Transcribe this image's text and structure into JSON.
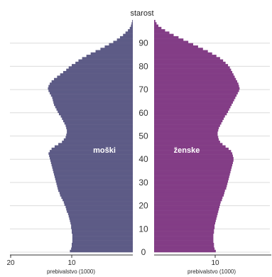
{
  "chart_data": {
    "type": "bar",
    "orientation": "horizontal-pyramid",
    "age_axis_title": "starost",
    "age_ticks": [
      0,
      10,
      20,
      30,
      40,
      50,
      60,
      70,
      80,
      90
    ],
    "age_range": [
      0,
      100
    ],
    "x_ticks": [
      20,
      10
    ],
    "x_range": [
      0,
      20
    ],
    "xlabel_left": "prebivalstvo (1000)",
    "xlabel_right": "prebivalstvo (1000)",
    "grid": true,
    "colors": {
      "male": "#5d5b86",
      "female": "#833d86"
    },
    "series": [
      {
        "name": "moški",
        "side": "left",
        "values": [
          10.3,
          10.1,
          10.0,
          10.0,
          9.9,
          9.9,
          9.9,
          9.9,
          10.0,
          10.0,
          10.1,
          10.1,
          10.2,
          10.3,
          10.4,
          10.5,
          10.6,
          10.8,
          10.9,
          11.0,
          11.2,
          11.3,
          11.5,
          11.7,
          11.9,
          12.0,
          12.2,
          12.3,
          12.4,
          12.5,
          12.6,
          12.7,
          12.8,
          12.9,
          13.0,
          13.1,
          13.2,
          13.3,
          13.4,
          13.5,
          13.6,
          13.7,
          13.8,
          13.6,
          13.3,
          12.8,
          12.2,
          11.6,
          11.3,
          11.0,
          10.9,
          10.8,
          10.8,
          10.9,
          11.0,
          11.2,
          11.4,
          11.6,
          11.8,
          12.1,
          12.3,
          12.5,
          12.7,
          12.9,
          13.0,
          13.1,
          13.2,
          13.4,
          13.6,
          13.8,
          13.9,
          13.8,
          13.6,
          13.3,
          12.9,
          12.4,
          11.9,
          11.4,
          10.9,
          10.5,
          10.0,
          9.4,
          8.9,
          8.3,
          7.6,
          6.9,
          6.1,
          5.3,
          4.6,
          3.9,
          3.2,
          2.6,
          2.1,
          1.6,
          1.2,
          0.8,
          0.5,
          0.3,
          0.2,
          0.1
        ]
      },
      {
        "name": "ženske",
        "side": "right",
        "values": [
          10.1,
          9.9,
          9.8,
          9.8,
          9.7,
          9.7,
          9.7,
          9.7,
          9.8,
          9.8,
          9.9,
          9.9,
          10.0,
          10.1,
          10.2,
          10.3,
          10.4,
          10.5,
          10.6,
          10.7,
          10.8,
          10.9,
          11.1,
          11.2,
          11.4,
          11.5,
          11.6,
          11.8,
          11.9,
          12.0,
          12.1,
          12.2,
          12.3,
          12.4,
          12.5,
          12.6,
          12.7,
          12.8,
          12.9,
          13.0,
          13.0,
          12.9,
          12.8,
          12.6,
          12.2,
          11.7,
          11.2,
          10.8,
          10.6,
          10.5,
          10.4,
          10.4,
          10.5,
          10.6,
          10.8,
          11.0,
          11.2,
          11.4,
          11.6,
          11.9,
          12.1,
          12.3,
          12.5,
          12.7,
          12.9,
          13.1,
          13.3,
          13.5,
          13.7,
          13.9,
          14.0,
          13.9,
          13.8,
          13.6,
          13.4,
          13.2,
          13.0,
          12.8,
          12.6,
          12.4,
          12.1,
          11.7,
          11.3,
          10.8,
          10.2,
          9.5,
          8.8,
          8.0,
          7.2,
          6.4,
          5.6,
          4.8,
          4.0,
          3.2,
          2.5,
          1.8,
          1.2,
          0.7,
          0.4,
          0.2
        ]
      }
    ]
  }
}
